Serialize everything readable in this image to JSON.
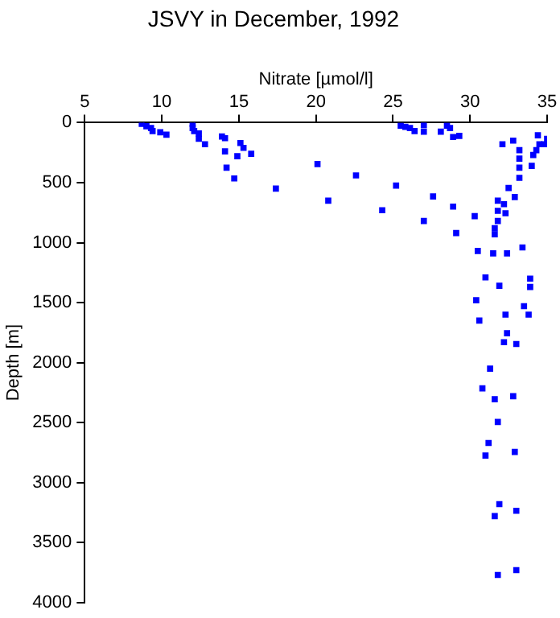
{
  "chart_data": {
    "type": "scatter",
    "title": "JSVY in December, 1992",
    "xlabel": "Nitrate [µmol/l]",
    "ylabel": "Depth [m]",
    "xlim": [
      5,
      35
    ],
    "xticks": [
      5,
      10,
      15,
      20,
      25,
      30,
      35
    ],
    "ylim": [
      4000,
      0
    ],
    "yticks": [
      0,
      500,
      1000,
      1500,
      2000,
      2500,
      3000,
      3500,
      4000
    ],
    "grid": false,
    "legend": false,
    "marker": "square",
    "series": [
      {
        "color": "#0000ff",
        "x": [
          8.7,
          9.0,
          9.3,
          9.4,
          9.9,
          10.3,
          12.0,
          12.0,
          12.1,
          12.4,
          12.4,
          12.8,
          13.9,
          14.1,
          14.1,
          14.9,
          15.1,
          15.3,
          15.8,
          14.2,
          14.7,
          17.4,
          20.1,
          20.8,
          22.6,
          24.3,
          25.2,
          25.5,
          25.8,
          26.1,
          26.4,
          27.0,
          27.0,
          27.6,
          28.1,
          28.5,
          28.7,
          28.9,
          29.3,
          28.9,
          29.1,
          27.0,
          30.3,
          31.6,
          31.6,
          31.8,
          32.2,
          32.3,
          31.8,
          31.8,
          32.5,
          32.9,
          32.8,
          32.1,
          33.2,
          33.2,
          33.2,
          33.2,
          34.0,
          34.1,
          34.3,
          34.5,
          34.8,
          35.0,
          34.4,
          30.5,
          31.5,
          32.4,
          33.4,
          31.0,
          31.9,
          33.9,
          33.9,
          30.4,
          33.5,
          32.3,
          33.8,
          30.6,
          32.4,
          32.2,
          33.0,
          31.3,
          30.8,
          31.6,
          32.8,
          31.8,
          31.2,
          31.0,
          32.9,
          31.9,
          33.0,
          31.6,
          33.0,
          31.8
        ],
        "values": [
          10,
          30,
          45,
          70,
          80,
          100,
          10,
          45,
          70,
          90,
          135,
          180,
          115,
          130,
          240,
          280,
          170,
          210,
          260,
          375,
          465,
          550,
          345,
          650,
          440,
          730,
          525,
          25,
          35,
          45,
          70,
          20,
          75,
          615,
          75,
          25,
          45,
          120,
          110,
          700,
          920,
          820,
          780,
          880,
          930,
          650,
          680,
          755,
          735,
          820,
          545,
          620,
          150,
          180,
          230,
          300,
          375,
          460,
          360,
          270,
          230,
          180,
          180,
          135,
          105,
          1070,
          1090,
          1090,
          1040,
          1290,
          1360,
          1300,
          1370,
          1480,
          1530,
          1600,
          1600,
          1650,
          1755,
          1830,
          1845,
          2050,
          2215,
          2305,
          2280,
          2495,
          2670,
          2775,
          2745,
          3180,
          3235,
          3280,
          3730,
          3770
        ]
      }
    ]
  }
}
